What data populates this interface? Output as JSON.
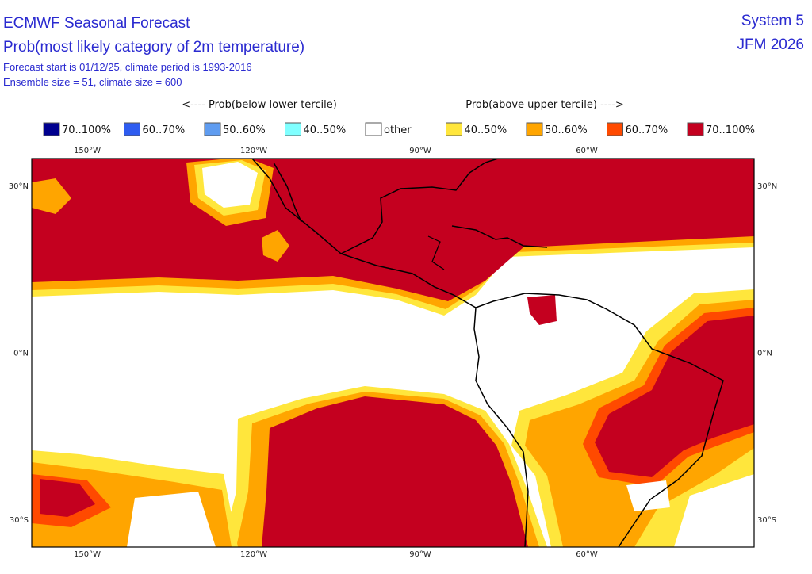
{
  "header": {
    "title": "ECMWF Seasonal Forecast",
    "subtitle": "Prob(most likely category of 2m temperature)",
    "info": [
      "Forecast start is 01/12/25, climate period is 1993-2016",
      "Ensemble size = 51, climate size = 600"
    ],
    "system": "System 5",
    "period": "JFM 2026"
  },
  "legend": {
    "below_label": "<---- Prob(below lower tercile)",
    "above_label": "Prob(above upper tercile) ---->",
    "items": [
      {
        "label": "70..100%",
        "color": "#00008f"
      },
      {
        "label": "60..70%",
        "color": "#2e5cf0"
      },
      {
        "label": "50..60%",
        "color": "#5f9cf0"
      },
      {
        "label": "40..50%",
        "color": "#80ffff"
      },
      {
        "label": "other",
        "color": "#ffffff"
      },
      {
        "label": "40..50%",
        "color": "#ffe63c"
      },
      {
        "label": "50..60%",
        "color": "#ffa500"
      },
      {
        "label": "60..70%",
        "color": "#ff4a00"
      },
      {
        "label": "70..100%",
        "color": "#c4001f"
      }
    ]
  },
  "map": {
    "lon_labels": [
      "150°W",
      "120°W",
      "90°W",
      "60°W"
    ],
    "lat_labels": [
      "30°N",
      "0°N",
      "30°S"
    ]
  }
}
